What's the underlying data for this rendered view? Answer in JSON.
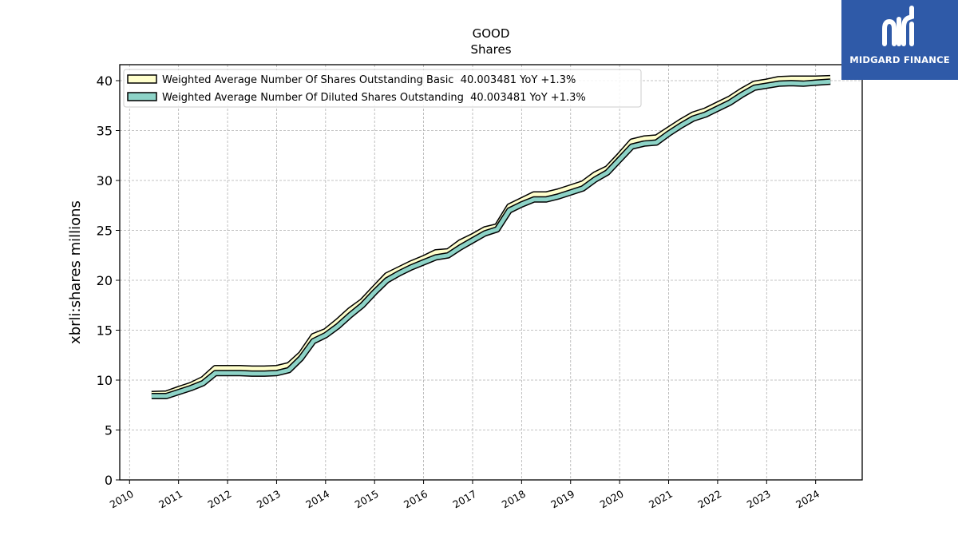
{
  "chart_data": {
    "type": "line",
    "title": "GOOD",
    "subtitle": "Shares",
    "ylabel": "xbrli:shares millions",
    "xlabel": "",
    "ylim": [
      0,
      41.6
    ],
    "xlim": [
      2009.8,
      2024.95
    ],
    "yticks": [
      0,
      5,
      10,
      15,
      20,
      25,
      30,
      35,
      40
    ],
    "xticks": [
      "2010",
      "2011",
      "2012",
      "2013",
      "2014",
      "2015",
      "2016",
      "2017",
      "2018",
      "2019",
      "2020",
      "2021",
      "2022",
      "2023",
      "2024"
    ],
    "grid": true,
    "legend_position": "top-left",
    "series": [
      {
        "name": "Weighted Average Number Of Shares Outstanding Basic  40.003481 YoY +1.3%",
        "color": "#ffffcc",
        "x": [
          2010.45,
          2010.75,
          2011.0,
          2011.25,
          2011.5,
          2011.75,
          2012.0,
          2012.25,
          2012.5,
          2012.75,
          2013.0,
          2013.25,
          2013.5,
          2013.75,
          2014.0,
          2014.25,
          2014.5,
          2014.75,
          2015.0,
          2015.25,
          2015.5,
          2015.75,
          2016.0,
          2016.25,
          2016.5,
          2016.75,
          2017.0,
          2017.25,
          2017.5,
          2017.75,
          2018.0,
          2018.25,
          2018.5,
          2018.75,
          2019.0,
          2019.25,
          2019.5,
          2019.75,
          2020.0,
          2020.25,
          2020.5,
          2020.75,
          2021.0,
          2021.25,
          2021.5,
          2021.75,
          2022.0,
          2022.25,
          2022.5,
          2022.75,
          2023.0,
          2023.25,
          2023.5,
          2023.75,
          2024.0,
          2024.3
        ],
        "y": [
          8.6,
          8.65,
          9.1,
          9.5,
          10.1,
          11.2,
          11.2,
          11.2,
          11.15,
          11.15,
          11.2,
          11.5,
          12.6,
          14.4,
          14.9,
          15.9,
          17.0,
          17.9,
          19.2,
          20.5,
          21.1,
          21.7,
          22.2,
          22.8,
          22.9,
          23.8,
          24.4,
          25.1,
          25.4,
          27.4,
          28.0,
          28.6,
          28.6,
          28.9,
          29.3,
          29.7,
          30.6,
          31.2,
          32.5,
          33.9,
          34.2,
          34.3,
          35.1,
          35.9,
          36.6,
          37.0,
          37.6,
          38.2,
          39.0,
          39.7,
          39.9,
          40.15,
          40.2,
          40.2,
          40.2,
          40.25
        ]
      },
      {
        "name": "Weighted Average Number Of Diluted Shares Outstanding  40.003481 YoY +1.3%",
        "color": "#8dd3c7",
        "x": [
          2010.45,
          2010.75,
          2011.0,
          2011.25,
          2011.5,
          2011.75,
          2012.0,
          2012.25,
          2012.5,
          2012.75,
          2013.0,
          2013.25,
          2013.5,
          2013.75,
          2014.0,
          2014.25,
          2014.5,
          2014.75,
          2015.0,
          2015.25,
          2015.5,
          2015.75,
          2016.0,
          2016.25,
          2016.5,
          2016.75,
          2017.0,
          2017.25,
          2017.5,
          2017.75,
          2018.0,
          2018.25,
          2018.5,
          2018.75,
          2019.0,
          2019.25,
          2019.5,
          2019.75,
          2020.0,
          2020.25,
          2020.5,
          2020.75,
          2021.0,
          2021.25,
          2021.5,
          2021.75,
          2022.0,
          2022.25,
          2022.5,
          2022.75,
          2023.0,
          2023.25,
          2023.5,
          2023.75,
          2024.0,
          2024.3
        ],
        "y": [
          8.4,
          8.4,
          8.8,
          9.2,
          9.7,
          10.7,
          10.7,
          10.7,
          10.65,
          10.65,
          10.7,
          11.0,
          12.2,
          13.9,
          14.5,
          15.4,
          16.5,
          17.5,
          18.8,
          20.0,
          20.7,
          21.3,
          21.8,
          22.3,
          22.5,
          23.3,
          24.0,
          24.7,
          25.1,
          27.0,
          27.6,
          28.1,
          28.1,
          28.4,
          28.8,
          29.2,
          30.1,
          30.8,
          32.1,
          33.4,
          33.7,
          33.8,
          34.7,
          35.5,
          36.2,
          36.6,
          37.2,
          37.8,
          38.6,
          39.3,
          39.5,
          39.7,
          39.75,
          39.7,
          39.8,
          39.9
        ]
      }
    ]
  },
  "logo": {
    "text": "MIDGARD FINANCE"
  }
}
